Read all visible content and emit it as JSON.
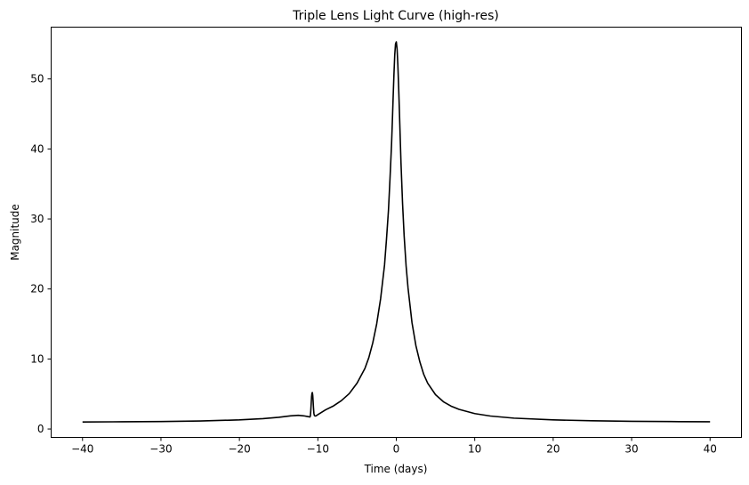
{
  "chart_data": {
    "type": "line",
    "title": "Triple Lens Light Curve (high-res)",
    "xlabel": "Time (days)",
    "ylabel": "Magnitude",
    "xlim": [
      -44,
      44
    ],
    "ylim": [
      -1.2,
      57.4
    ],
    "xticks": [
      -40,
      -30,
      -20,
      -10,
      0,
      10,
      20,
      30,
      40
    ],
    "yticks": [
      0,
      10,
      20,
      30,
      40,
      50
    ],
    "grid": false,
    "legend": "none",
    "series": [
      {
        "color": "#000000",
        "x": [
          -40,
          -35,
          -30,
          -25,
          -20,
          -17,
          -15,
          -13.5,
          -12.5,
          -11.8,
          -11.3,
          -11.0,
          -10.95,
          -10.9,
          -10.85,
          -10.8,
          -10.75,
          -10.7,
          -10.65,
          -10.6,
          -10.55,
          -10.5,
          -10.45,
          -10.4,
          -10.3,
          -10.2,
          -10.0,
          -9.5,
          -9,
          -8,
          -7,
          -6,
          -5,
          -4,
          -3.5,
          -3,
          -2.5,
          -2,
          -1.5,
          -1.25,
          -1,
          -0.8,
          -0.6,
          -0.5,
          -0.4,
          -0.3,
          -0.2,
          -0.1,
          0,
          0.1,
          0.2,
          0.3,
          0.4,
          0.5,
          0.6,
          0.8,
          1,
          1.25,
          1.5,
          2,
          2.5,
          3,
          3.5,
          4,
          5,
          6,
          7,
          8,
          10,
          12,
          15,
          20,
          25,
          30,
          35,
          40
        ],
        "y": [
          1.0,
          1.03,
          1.07,
          1.14,
          1.3,
          1.48,
          1.67,
          1.87,
          1.95,
          1.88,
          1.78,
          1.72,
          1.9,
          2.6,
          3.6,
          4.6,
          5.1,
          5.2,
          4.8,
          3.9,
          2.9,
          2.2,
          1.95,
          1.88,
          1.85,
          1.9,
          2.05,
          2.4,
          2.75,
          3.3,
          4.05,
          5.05,
          6.55,
          8.65,
          10.2,
          12.3,
          15.0,
          18.6,
          23.4,
          27.1,
          31.2,
          35.8,
          40.8,
          44.0,
          47.4,
          50.6,
          53.4,
          55.0,
          55.3,
          54.3,
          52.0,
          48.8,
          45.3,
          41.6,
          38.0,
          32.2,
          27.6,
          23.3,
          20.1,
          15.2,
          11.9,
          9.6,
          7.8,
          6.55,
          4.9,
          3.9,
          3.25,
          2.8,
          2.2,
          1.85,
          1.55,
          1.3,
          1.17,
          1.1,
          1.06,
          1.03
        ]
      }
    ]
  }
}
